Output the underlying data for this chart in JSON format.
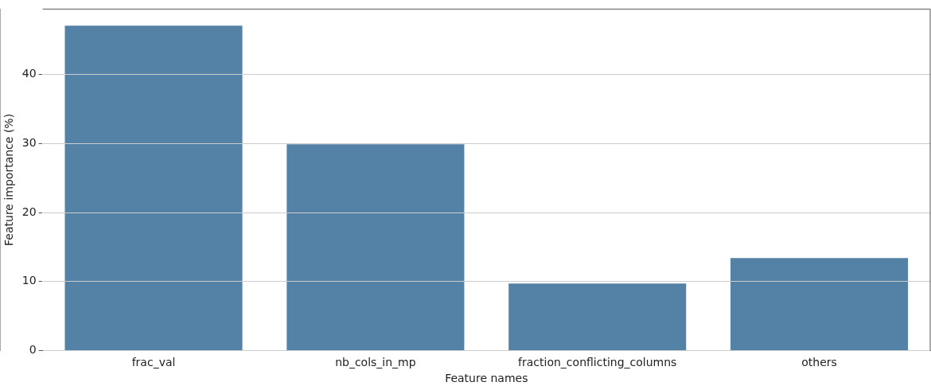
{
  "chart_data": {
    "type": "bar",
    "xlabel": "Feature names",
    "ylabel": "Feature importance (%)",
    "categories": [
      "frac_val",
      "nb_cols_in_mp",
      "fraction_conflicting_columns",
      "others"
    ],
    "values": [
      47.1,
      29.9,
      9.7,
      13.4
    ],
    "color": "#5481a6",
    "ylim": [
      0,
      49.5
    ],
    "yticks": [
      0,
      10,
      20,
      30,
      40
    ],
    "grid": "y",
    "legend": false
  }
}
